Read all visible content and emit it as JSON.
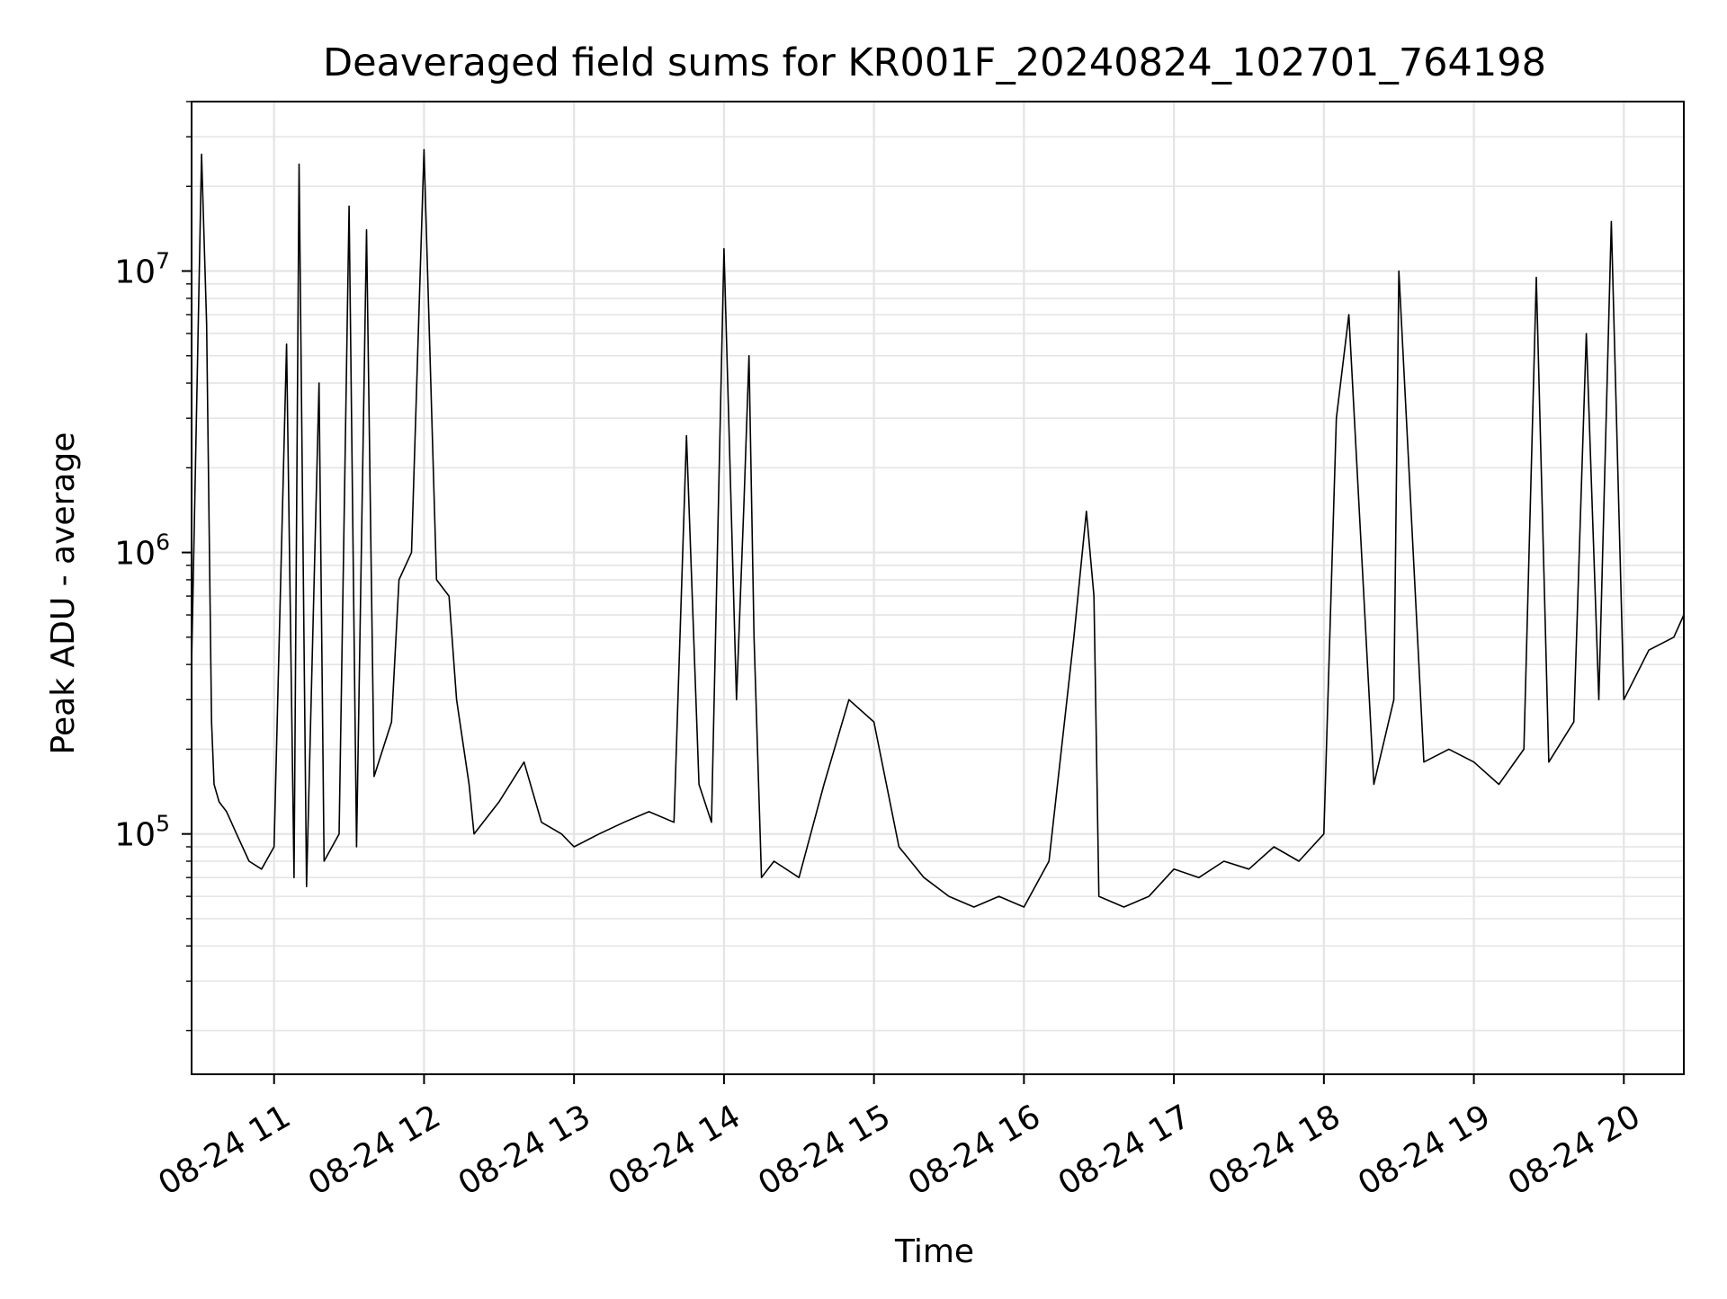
{
  "colors": {
    "line": "#000000",
    "grid": "#e4e4e4",
    "axes": "#000000",
    "background": "#ffffff"
  },
  "chart_data": {
    "type": "line",
    "title": "Deaveraged field sums for KR001F_20240824_102701_764198",
    "xlabel": "Time",
    "ylabel": "Peak ADU - average",
    "yscale": "log",
    "xlim": [
      "2024-08-24 10:27",
      "2024-08-24 20:24"
    ],
    "ylim": [
      14000,
      40000000
    ],
    "grid": {
      "major": true,
      "minor_y": true
    },
    "x_ticks": [
      {
        "value": "2024-08-24 11:00",
        "label": "08-24 11"
      },
      {
        "value": "2024-08-24 12:00",
        "label": "08-24 12"
      },
      {
        "value": "2024-08-24 13:00",
        "label": "08-24 13"
      },
      {
        "value": "2024-08-24 14:00",
        "label": "08-24 14"
      },
      {
        "value": "2024-08-24 15:00",
        "label": "08-24 15"
      },
      {
        "value": "2024-08-24 16:00",
        "label": "08-24 16"
      },
      {
        "value": "2024-08-24 17:00",
        "label": "08-24 17"
      },
      {
        "value": "2024-08-24 18:00",
        "label": "08-24 18"
      },
      {
        "value": "2024-08-24 19:00",
        "label": "08-24 19"
      },
      {
        "value": "2024-08-24 20:00",
        "label": "08-24 20"
      }
    ],
    "y_ticks": [
      {
        "value": 100000,
        "base": "10",
        "exp": "5"
      },
      {
        "value": 1000000,
        "base": "10",
        "exp": "6"
      },
      {
        "value": 10000000,
        "base": "10",
        "exp": "7"
      }
    ],
    "series": [
      {
        "x": [
          "2024-08-24 10:27",
          "2024-08-24 10:31",
          "2024-08-24 10:33",
          "2024-08-24 10:35",
          "2024-08-24 10:36",
          "2024-08-24 10:38",
          "2024-08-24 10:41",
          "2024-08-24 10:45",
          "2024-08-24 10:50",
          "2024-08-24 10:55",
          "2024-08-24 11:00",
          "2024-08-24 11:05",
          "2024-08-24 11:08",
          "2024-08-24 11:10",
          "2024-08-24 11:13",
          "2024-08-24 11:18",
          "2024-08-24 11:20",
          "2024-08-24 11:26",
          "2024-08-24 11:30",
          "2024-08-24 11:33",
          "2024-08-24 11:37",
          "2024-08-24 11:40",
          "2024-08-24 11:47",
          "2024-08-24 11:50",
          "2024-08-24 11:55",
          "2024-08-24 12:00",
          "2024-08-24 12:05",
          "2024-08-24 12:10",
          "2024-08-24 12:13",
          "2024-08-24 12:18",
          "2024-08-24 12:20",
          "2024-08-24 12:30",
          "2024-08-24 12:40",
          "2024-08-24 12:47",
          "2024-08-24 12:55",
          "2024-08-24 13:00",
          "2024-08-24 13:10",
          "2024-08-24 13:20",
          "2024-08-24 13:30",
          "2024-08-24 13:40",
          "2024-08-24 13:45",
          "2024-08-24 13:50",
          "2024-08-24 13:55",
          "2024-08-24 14:00",
          "2024-08-24 14:05",
          "2024-08-24 14:08",
          "2024-08-24 14:10",
          "2024-08-24 14:12",
          "2024-08-24 14:15",
          "2024-08-24 14:20",
          "2024-08-24 14:30",
          "2024-08-24 14:40",
          "2024-08-24 14:50",
          "2024-08-24 15:00",
          "2024-08-24 15:10",
          "2024-08-24 15:20",
          "2024-08-24 15:30",
          "2024-08-24 15:40",
          "2024-08-24 15:50",
          "2024-08-24 16:00",
          "2024-08-24 16:10",
          "2024-08-24 16:20",
          "2024-08-24 16:25",
          "2024-08-24 16:28",
          "2024-08-24 16:30",
          "2024-08-24 16:40",
          "2024-08-24 16:50",
          "2024-08-24 17:00",
          "2024-08-24 17:10",
          "2024-08-24 17:20",
          "2024-08-24 17:30",
          "2024-08-24 17:40",
          "2024-08-24 17:50",
          "2024-08-24 18:00",
          "2024-08-24 18:05",
          "2024-08-24 18:10",
          "2024-08-24 18:20",
          "2024-08-24 18:28",
          "2024-08-24 18:30",
          "2024-08-24 18:40",
          "2024-08-24 18:50",
          "2024-08-24 19:00",
          "2024-08-24 19:10",
          "2024-08-24 19:20",
          "2024-08-24 19:25",
          "2024-08-24 19:30",
          "2024-08-24 19:40",
          "2024-08-24 19:45",
          "2024-08-24 19:50",
          "2024-08-24 19:55",
          "2024-08-24 20:00",
          "2024-08-24 20:10",
          "2024-08-24 20:20",
          "2024-08-24 20:24"
        ],
        "values": [
          400000,
          26000000,
          6500000,
          250000,
          150000,
          130000,
          120000,
          100000,
          80000,
          75000,
          90000,
          5500000,
          70000,
          24000000,
          65000,
          4000000,
          80000,
          100000,
          17000000,
          90000,
          14000000,
          160000,
          250000,
          800000,
          1000000,
          27000000,
          800000,
          700000,
          300000,
          150000,
          100000,
          130000,
          180000,
          110000,
          100000,
          90000,
          100000,
          110000,
          120000,
          110000,
          2600000,
          150000,
          110000,
          12000000,
          300000,
          1500000,
          5000000,
          500000,
          70000,
          80000,
          70000,
          150000,
          300000,
          250000,
          90000,
          70000,
          60000,
          55000,
          60000,
          55000,
          80000,
          500000,
          1400000,
          700000,
          60000,
          55000,
          60000,
          75000,
          70000,
          80000,
          75000,
          90000,
          80000,
          100000,
          3000000,
          7000000,
          150000,
          300000,
          10000000,
          180000,
          200000,
          180000,
          150000,
          200000,
          9500000,
          180000,
          250000,
          6000000,
          300000,
          15000000,
          300000,
          450000,
          500000,
          600000
        ]
      }
    ]
  }
}
